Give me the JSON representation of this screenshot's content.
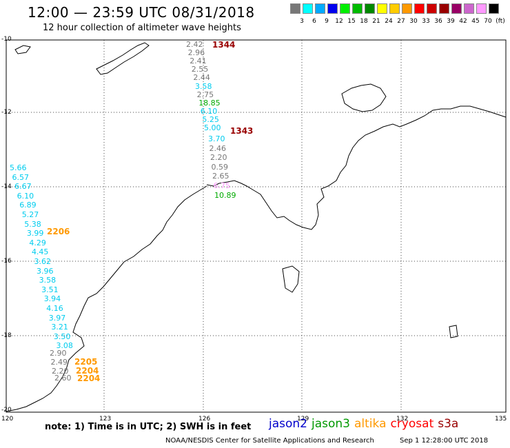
{
  "header": {
    "title": "12:00 — 23:59 UTC 08/31/2018",
    "subtitle": "12 hour collection of altimeter wave heights"
  },
  "legend": {
    "unit": "(ft)",
    "bins": [
      {
        "label": "3",
        "color": "#777777"
      },
      {
        "label": "6",
        "color": "#00ffff"
      },
      {
        "label": "9",
        "color": "#00aaff"
      },
      {
        "label": "12",
        "color": "#0000ee"
      },
      {
        "label": "15",
        "color": "#00ee00"
      },
      {
        "label": "18",
        "color": "#00bb00"
      },
      {
        "label": "21",
        "color": "#008800"
      },
      {
        "label": "24",
        "color": "#ffff00"
      },
      {
        "label": "27",
        "color": "#ffcc00"
      },
      {
        "label": "30",
        "color": "#ff9900"
      },
      {
        "label": "33",
        "color": "#ff0000"
      },
      {
        "label": "36",
        "color": "#cc0000"
      },
      {
        "label": "39",
        "color": "#990000"
      },
      {
        "label": "42",
        "color": "#990066"
      },
      {
        "label": "45",
        "color": "#cc66cc"
      },
      {
        "label": "70",
        "color": "#ff99ff"
      },
      {
        "label": "",
        "color": "#000000"
      }
    ]
  },
  "axes": {
    "lat_labels": [
      "-10",
      "-12",
      "-14",
      "-16",
      "-18",
      "-20"
    ],
    "lon_labels": [
      "120",
      "123",
      "126",
      "129",
      "132",
      "135"
    ]
  },
  "tracks": [
    {
      "time": "1344",
      "time_color": "#990000",
      "readings": [
        {
          "v": "2.42",
          "c": "#777777"
        },
        {
          "v": "2.96",
          "c": "#777777"
        },
        {
          "v": "2.41",
          "c": "#777777"
        },
        {
          "v": "2.55",
          "c": "#777777"
        },
        {
          "v": "2.44",
          "c": "#777777"
        },
        {
          "v": "3.58",
          "c": "#00ccee"
        },
        {
          "v": "2.75",
          "c": "#777777"
        },
        {
          "v": "18.85",
          "c": "#00aa00"
        },
        {
          "v": "6.10",
          "c": "#00ccee"
        },
        {
          "v": "5.25",
          "c": "#00ccee"
        },
        {
          "v": "5.00",
          "c": "#00ccee"
        }
      ]
    },
    {
      "time": "1343",
      "time_color": "#990000",
      "readings": [
        {
          "v": "3.70",
          "c": "#00ccee"
        },
        {
          "v": "2.46",
          "c": "#777777"
        },
        {
          "v": "2.20",
          "c": "#777777"
        },
        {
          "v": "0.59",
          "c": "#777777"
        },
        {
          "v": "2.65",
          "c": "#777777"
        },
        {
          "v": "6.75",
          "c": "#ff99ff"
        },
        {
          "v": "10.89",
          "c": "#00aa00"
        }
      ]
    },
    {
      "time": "2206",
      "time_color": "#ff9900",
      "readings": [
        {
          "v": "5.66",
          "c": "#00ccee"
        },
        {
          "v": "6.57",
          "c": "#00ccee"
        },
        {
          "v": "6.67",
          "c": "#00ccee"
        },
        {
          "v": "6.10",
          "c": "#00ccee"
        },
        {
          "v": "6.89",
          "c": "#00ccee"
        },
        {
          "v": "5.27",
          "c": "#00ccee"
        },
        {
          "v": "5.38",
          "c": "#00ccee"
        },
        {
          "v": "3.99",
          "c": "#00ccee"
        },
        {
          "v": "4.29",
          "c": "#00ccee"
        },
        {
          "v": "4.45",
          "c": "#00ccee"
        },
        {
          "v": "3.62",
          "c": "#00ccee"
        },
        {
          "v": "3.96",
          "c": "#00ccee"
        },
        {
          "v": "3.58",
          "c": "#00ccee"
        },
        {
          "v": "3.51",
          "c": "#00ccee"
        },
        {
          "v": "3.94",
          "c": "#00ccee"
        },
        {
          "v": "4.16",
          "c": "#00ccee"
        },
        {
          "v": "3.97",
          "c": "#00ccee"
        },
        {
          "v": "3.21",
          "c": "#00ccee"
        },
        {
          "v": "3.50",
          "c": "#00ccee"
        },
        {
          "v": "3.08",
          "c": "#00ccee"
        }
      ]
    },
    {
      "time": "2205",
      "time_color": "#ff9900",
      "readings": [
        {
          "v": "2.90",
          "c": "#777777"
        },
        {
          "v": "2.49",
          "c": "#777777"
        }
      ]
    },
    {
      "time": "2204",
      "time_color": "#ff9900",
      "readings": [
        {
          "v": "2.20",
          "c": "#777777"
        }
      ]
    },
    {
      "time": "2204",
      "time_color": "#ff9900",
      "readings": [
        {
          "v": "2.60",
          "c": "#777777"
        }
      ]
    }
  ],
  "footer": {
    "note": "note:  1) Time is in UTC;  2) SWH is in feet",
    "satellites": [
      {
        "name": "jason2",
        "color": "#0000cc"
      },
      {
        "name": "jason3",
        "color": "#009900"
      },
      {
        "name": "altika",
        "color": "#ff9900"
      },
      {
        "name": "cryosat",
        "color": "#ff0000"
      },
      {
        "name": "s3a",
        "color": "#990000"
      }
    ],
    "credit": "NOAA/NESDIS Center for Satellite Applications and Research",
    "timestamp": "Sep  1 12:28:00 UTC 2018"
  }
}
